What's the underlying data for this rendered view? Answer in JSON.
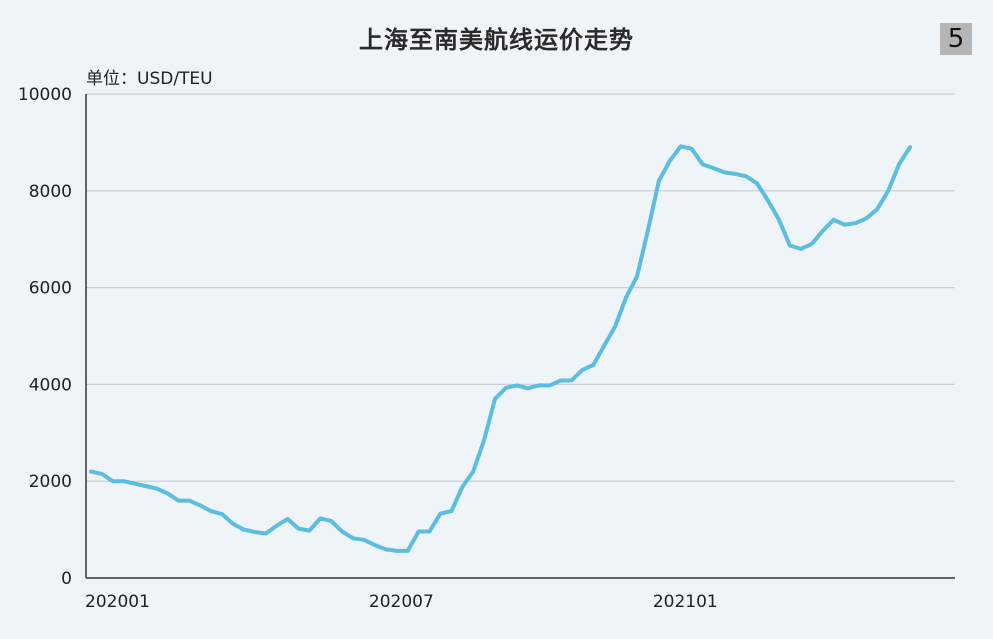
{
  "title": "上海至南美航线运价走势",
  "page_number": "5",
  "unit_label": "单位：USD/TEU",
  "colors": {
    "background": "#eef4f7",
    "line": "#5bbde0",
    "grid": "#c9d0d4",
    "axis": "#333333"
  },
  "chart_data": {
    "type": "line",
    "title": "上海至南美航线运价走势",
    "ylabel": "单位：USD/TEU",
    "xlabel": "",
    "ylim": [
      0,
      10000
    ],
    "yticks": [
      0,
      2000,
      4000,
      6000,
      8000,
      10000
    ],
    "xticks": [
      {
        "label": "202001",
        "index": 0
      },
      {
        "label": "202007",
        "index": 26
      },
      {
        "label": "202101",
        "index": 52
      }
    ],
    "grid": "horizontal",
    "series": [
      {
        "values": [
          2200,
          2150,
          2000,
          2000,
          1950,
          1900,
          1850,
          1750,
          1600,
          1600,
          1500,
          1380,
          1320,
          1120,
          1000,
          950,
          920,
          1080,
          1220,
          1020,
          980,
          1230,
          1180,
          960,
          820,
          790,
          680,
          590,
          560,
          560,
          960,
          960,
          1330,
          1380,
          1880,
          2200,
          2850,
          3700,
          3930,
          3980,
          3920,
          3980,
          3980,
          4080,
          4080,
          4300,
          4400,
          4800,
          5200,
          5800,
          6230,
          7180,
          8200,
          8620,
          8920,
          8870,
          8550,
          8470,
          8380,
          8350,
          8300,
          8150,
          7800,
          7400,
          6870,
          6800,
          6900,
          7170,
          7400,
          7300,
          7330,
          7430,
          7620,
          8000,
          8550,
          8900
        ]
      }
    ]
  }
}
